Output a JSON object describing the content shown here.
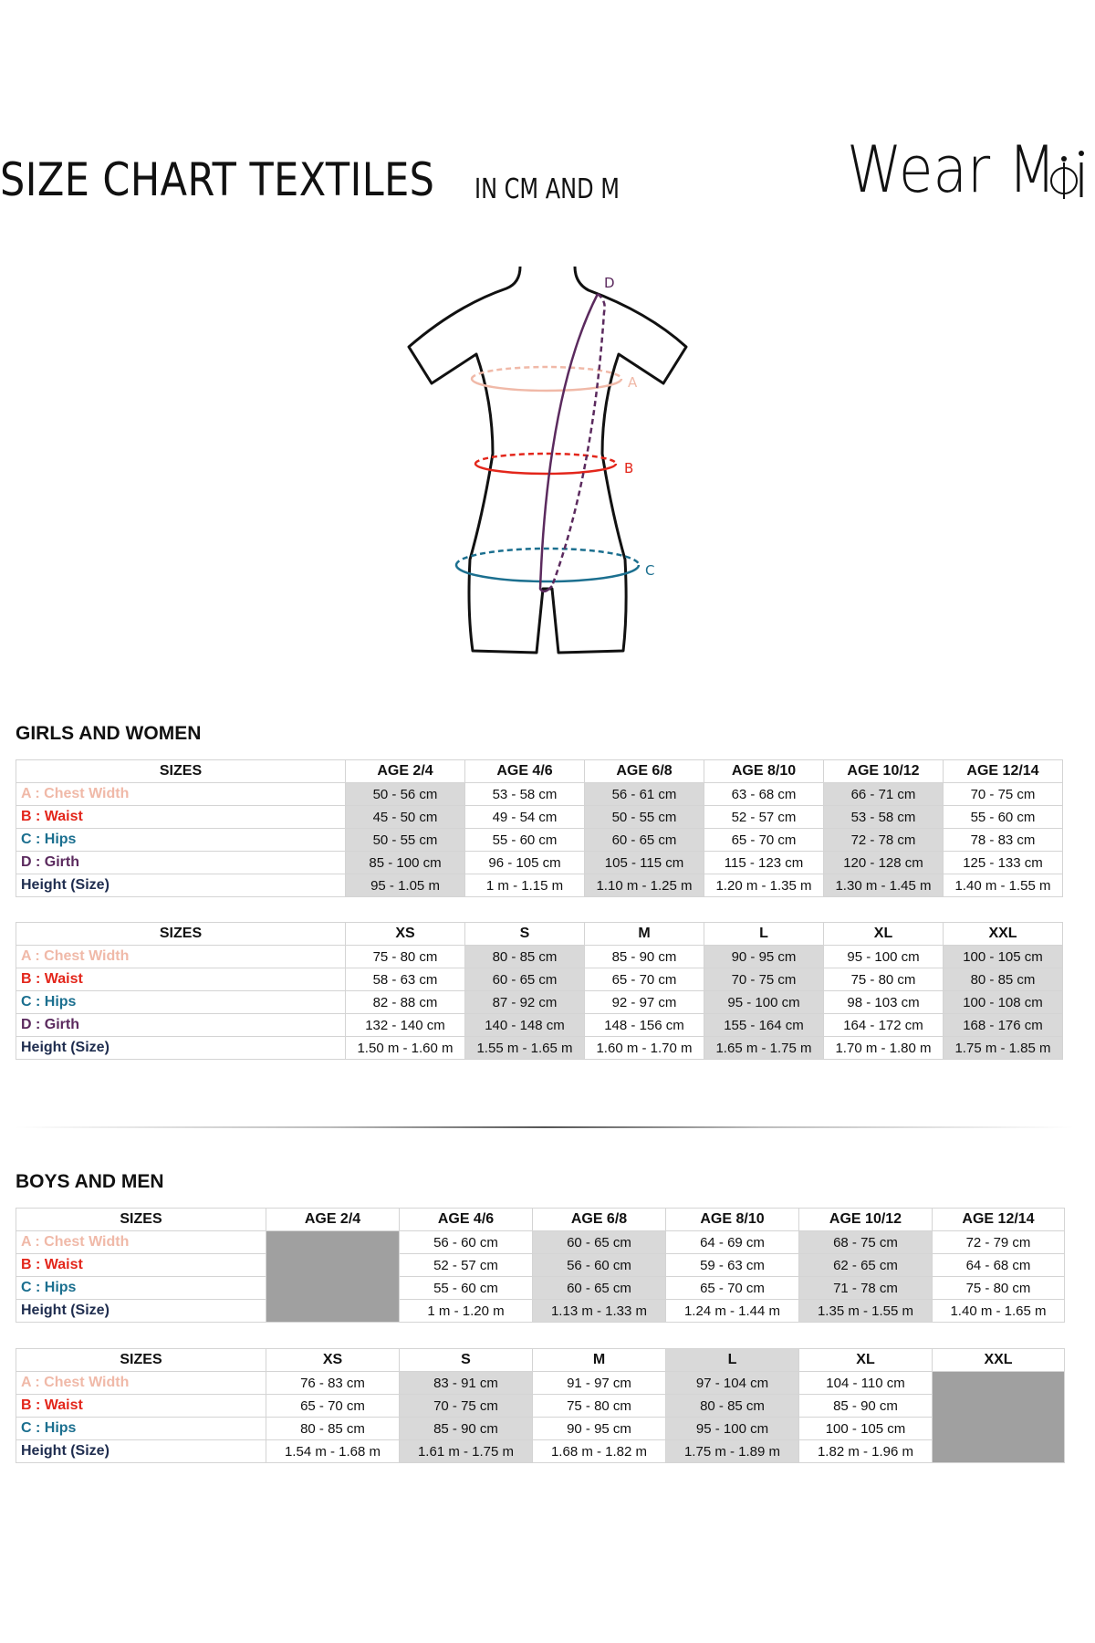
{
  "header": {
    "title": "SIZE CHART TEXTILES",
    "subtitle": "IN CM AND M",
    "logo_text": "Wear Moi"
  },
  "diagram": {
    "labels": {
      "a": "A",
      "b": "B",
      "c": "C",
      "d": "D"
    },
    "colors": {
      "chest": "#f0b9a8",
      "waist": "#e3261b",
      "hips": "#1b6f8f",
      "girth": "#5b2a5e",
      "outline": "#111111"
    }
  },
  "colors": {
    "chest": "#f0b9a8",
    "waist": "#e3261b",
    "hips": "#1b6f8f",
    "girth": "#5b2a5e",
    "height": "#1f2d4f",
    "light_shade": "#d9d9d9",
    "dark_shade": "#a0a0a0"
  },
  "sections": [
    {
      "heading": "GIRLS AND WOMEN",
      "tables": [
        {
          "headers": [
            "SIZES",
            "AGE 2/4",
            "AGE 4/6",
            "AGE 6/8",
            "AGE 8/10",
            "AGE 10/12",
            "AGE 12/14"
          ],
          "header_shading": [
            "none",
            "none",
            "none",
            "none",
            "none",
            "none",
            "none"
          ],
          "column_shading": [
            "none",
            "light",
            "none",
            "light",
            "none",
            "light",
            "none"
          ],
          "rows": [
            {
              "label": "A : Chest Width",
              "key": "chest",
              "values": [
                "50 - 56 cm",
                "53 - 58 cm",
                "56 - 61 cm",
                "63 - 68 cm",
                "66 - 71 cm",
                "70 - 75 cm"
              ]
            },
            {
              "label": "B : Waist",
              "key": "waist",
              "values": [
                "45 - 50 cm",
                "49  - 54 cm",
                "50 - 55 cm",
                "52 - 57 cm",
                "53 - 58 cm",
                "55 - 60 cm"
              ]
            },
            {
              "label": "C : Hips",
              "key": "hips",
              "values": [
                "50 - 55 cm",
                "55 - 60 cm",
                "60 - 65 cm",
                "65 - 70 cm",
                "72 - 78 cm",
                "78 - 83 cm"
              ]
            },
            {
              "label": "D : Girth",
              "key": "girth",
              "values": [
                "85 - 100 cm",
                "96 - 105 cm",
                "105 - 115  cm",
                "115 - 123 cm",
                "120 - 128 cm",
                "125 - 133 cm"
              ]
            },
            {
              "label": "Height (Size)",
              "key": "height",
              "values": [
                "95 - 1.05 m",
                "1 m - 1.15 m",
                "1.10 m - 1.25 m",
                "1.20 m - 1.35 m",
                "1.30 m - 1.45 m",
                "1.40 m - 1.55 m"
              ]
            }
          ]
        },
        {
          "headers": [
            "SIZES",
            "XS",
            "S",
            "M",
            "L",
            "XL",
            "XXL"
          ],
          "header_shading": [
            "none",
            "none",
            "none",
            "none",
            "none",
            "none",
            "none"
          ],
          "column_shading": [
            "none",
            "none",
            "light",
            "none",
            "light",
            "none",
            "light"
          ],
          "rows": [
            {
              "label": "A : Chest Width",
              "key": "chest",
              "values": [
                "75 - 80 cm",
                "80 - 85 cm",
                "85 - 90 cm",
                "90 - 95 cm",
                "95 - 100 cm",
                "100 - 105 cm"
              ]
            },
            {
              "label": "B : Waist",
              "key": "waist",
              "values": [
                "58 - 63 cm",
                "60 - 65 cm",
                "65 - 70 cm",
                "70 - 75 cm",
                "75 - 80 cm",
                "80 - 85 cm"
              ]
            },
            {
              "label": "C : Hips",
              "key": "hips",
              "values": [
                "82 - 88 cm",
                "87 - 92 cm",
                "92 - 97 cm",
                "95 - 100 cm",
                "98 - 103 cm",
                "100 - 108 cm"
              ]
            },
            {
              "label": "D : Girth",
              "key": "girth",
              "values": [
                "132 - 140 cm",
                "140 - 148 cm",
                "148 - 156 cm",
                "155 - 164 cm",
                "164 - 172 cm",
                "168 - 176 cm"
              ]
            },
            {
              "label": "Height (Size)",
              "key": "height",
              "values": [
                "1.50 m - 1.60 m",
                "1.55 m - 1.65 m",
                "1.60 m - 1.70 m",
                "1.65 m - 1.75 m",
                "1.70 m - 1.80 m",
                "1.75 m - 1.85 m"
              ]
            }
          ]
        }
      ]
    },
    {
      "heading": "BOYS AND MEN",
      "tables": [
        {
          "headers": [
            "SIZES",
            "AGE 2/4",
            "AGE 4/6",
            "AGE 6/8",
            "AGE 8/10",
            "AGE 10/12",
            "AGE 12/14"
          ],
          "header_shading": [
            "none",
            "none",
            "none",
            "none",
            "none",
            "none",
            "none"
          ],
          "column_shading": [
            "none",
            "dark",
            "none",
            "light",
            "none",
            "light",
            "none"
          ],
          "rows": [
            {
              "label": "A : Chest Width",
              "key": "chest",
              "values": [
                "",
                "56 - 60 cm",
                "60 - 65 cm",
                "64 - 69 cm",
                "68 - 75 cm",
                "72 - 79 cm"
              ]
            },
            {
              "label": "B : Waist",
              "key": "waist",
              "values": [
                "",
                "52  - 57 cm",
                "56 - 60 cm",
                "59 - 63 cm",
                "62 - 65 cm",
                "64 - 68 cm"
              ]
            },
            {
              "label": "C : Hips",
              "key": "hips",
              "values": [
                "",
                "55 - 60 cm",
                "60 - 65 cm",
                "65 - 70 cm",
                "71 - 78 cm",
                "75 - 80 cm"
              ]
            },
            {
              "label": "Height (Size)",
              "key": "height",
              "values": [
                "",
                "1 m - 1.20 m",
                "1.13 m - 1.33 m",
                "1.24 m - 1.44 m",
                "1.35 m - 1.55 m",
                "1.40 m - 1.65 m"
              ]
            }
          ]
        },
        {
          "headers": [
            "SIZES",
            "XS",
            "S",
            "M",
            "L",
            "XL",
            "XXL"
          ],
          "header_shading": [
            "none",
            "none",
            "none",
            "none",
            "light",
            "none",
            "none"
          ],
          "column_shading": [
            "none",
            "none",
            "light",
            "none",
            "light",
            "none",
            "dark"
          ],
          "rows": [
            {
              "label": "A : Chest Width",
              "key": "chest",
              "values": [
                "76 - 83 cm",
                "83 - 91 cm",
                "91 - 97 cm",
                "97 - 104 cm",
                "104 - 110 cm",
                ""
              ]
            },
            {
              "label": "B : Waist",
              "key": "waist",
              "values": [
                "65 - 70 cm",
                "70 - 75 cm",
                "75 - 80 cm",
                "80 - 85 cm",
                "85 - 90 cm",
                ""
              ]
            },
            {
              "label": "C : Hips",
              "key": "hips",
              "values": [
                "80 - 85 cm",
                "85 - 90 cm",
                "90 - 95 cm",
                "95 - 100 cm",
                "100 - 105 cm",
                ""
              ]
            },
            {
              "label": "Height (Size)",
              "key": "height",
              "values": [
                "1.54 m - 1.68 m",
                "1.61 m - 1.75 m",
                "1.68 m - 1.82 m",
                "1.75 m - 1.89 m",
                "1.82 m - 1.96 m",
                ""
              ]
            }
          ]
        }
      ]
    }
  ]
}
